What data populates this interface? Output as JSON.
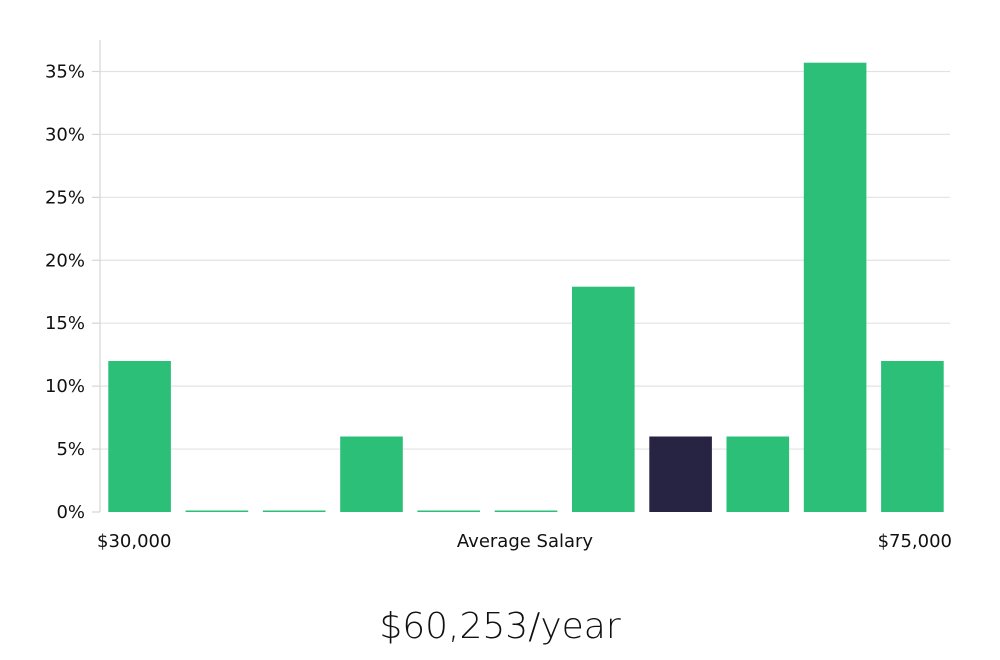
{
  "chart_data": {
    "type": "bar",
    "categories": [
      "1",
      "2",
      "3",
      "4",
      "5",
      "6",
      "7",
      "8",
      "9",
      "10",
      "11"
    ],
    "values": [
      12,
      0,
      0,
      6,
      0,
      0,
      17.9,
      6,
      6,
      35.7,
      12
    ],
    "highlight_index": 7,
    "ylim": [
      0,
      37.5
    ],
    "yticks": [
      0,
      5,
      10,
      15,
      20,
      25,
      30,
      35
    ],
    "ytick_suffix": "%",
    "x_start_label": "$30,000",
    "x_end_label": "$75,000",
    "xlabel": "Average Salary",
    "grid": true,
    "colors": {
      "bar": "#2bbf78",
      "bar_highlight": "#272343",
      "grid": "#e3e3e3",
      "axis": "#d6d6d6"
    }
  },
  "headline": "$60,253/year"
}
